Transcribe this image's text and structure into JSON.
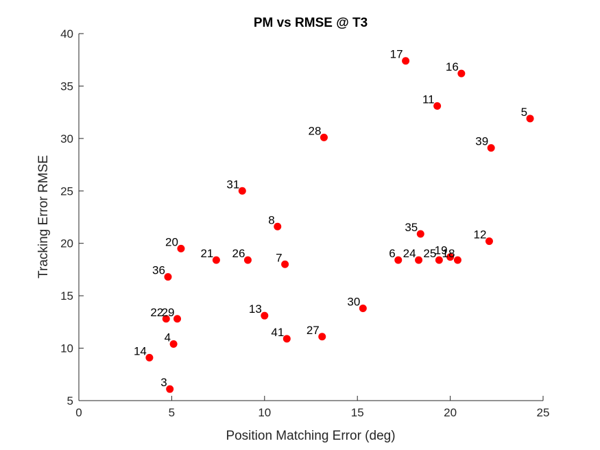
{
  "chart_data": {
    "type": "scatter",
    "title": "PM vs RMSE @ T3",
    "xlabel": "Position Matching Error (deg)",
    "ylabel": "Tracking Error RMSE",
    "xlim": [
      0,
      25
    ],
    "ylim": [
      5,
      40
    ],
    "xticks": [
      0,
      5,
      10,
      15,
      20,
      25
    ],
    "yticks": [
      5,
      10,
      15,
      20,
      25,
      30,
      35,
      40
    ],
    "grid": false,
    "marker_color": "#ff0000",
    "points": [
      {
        "label": "17",
        "x": 17.6,
        "y": 37.4
      },
      {
        "label": "16",
        "x": 20.6,
        "y": 36.2
      },
      {
        "label": "11",
        "x": 19.3,
        "y": 33.1
      },
      {
        "label": "5",
        "x": 24.3,
        "y": 31.9
      },
      {
        "label": "28",
        "x": 13.2,
        "y": 30.1
      },
      {
        "label": "39",
        "x": 22.2,
        "y": 29.1
      },
      {
        "label": "31",
        "x": 8.8,
        "y": 25.0
      },
      {
        "label": "8",
        "x": 10.7,
        "y": 21.6
      },
      {
        "label": "35",
        "x": 18.4,
        "y": 20.9
      },
      {
        "label": "12",
        "x": 22.1,
        "y": 20.2
      },
      {
        "label": "20",
        "x": 5.5,
        "y": 19.5
      },
      {
        "label": "19",
        "x": 20.0,
        "y": 18.7
      },
      {
        "label": "21",
        "x": 7.4,
        "y": 18.4
      },
      {
        "label": "26",
        "x": 9.1,
        "y": 18.4
      },
      {
        "label": "6",
        "x": 17.2,
        "y": 18.4
      },
      {
        "label": "24",
        "x": 18.3,
        "y": 18.4
      },
      {
        "label": "25",
        "x": 19.4,
        "y": 18.4
      },
      {
        "label": "18",
        "x": 20.4,
        "y": 18.4
      },
      {
        "label": "7",
        "x": 11.1,
        "y": 18.0
      },
      {
        "label": "36",
        "x": 4.8,
        "y": 16.8
      },
      {
        "label": "30",
        "x": 15.3,
        "y": 13.8
      },
      {
        "label": "13",
        "x": 10.0,
        "y": 13.1
      },
      {
        "label": "22",
        "x": 4.7,
        "y": 12.8
      },
      {
        "label": "29",
        "x": 5.3,
        "y": 12.8
      },
      {
        "label": "27",
        "x": 13.1,
        "y": 11.1
      },
      {
        "label": "41",
        "x": 11.2,
        "y": 10.9
      },
      {
        "label": "4",
        "x": 5.1,
        "y": 10.4
      },
      {
        "label": "14",
        "x": 3.8,
        "y": 9.1
      },
      {
        "label": "3",
        "x": 4.9,
        "y": 6.1
      }
    ]
  }
}
